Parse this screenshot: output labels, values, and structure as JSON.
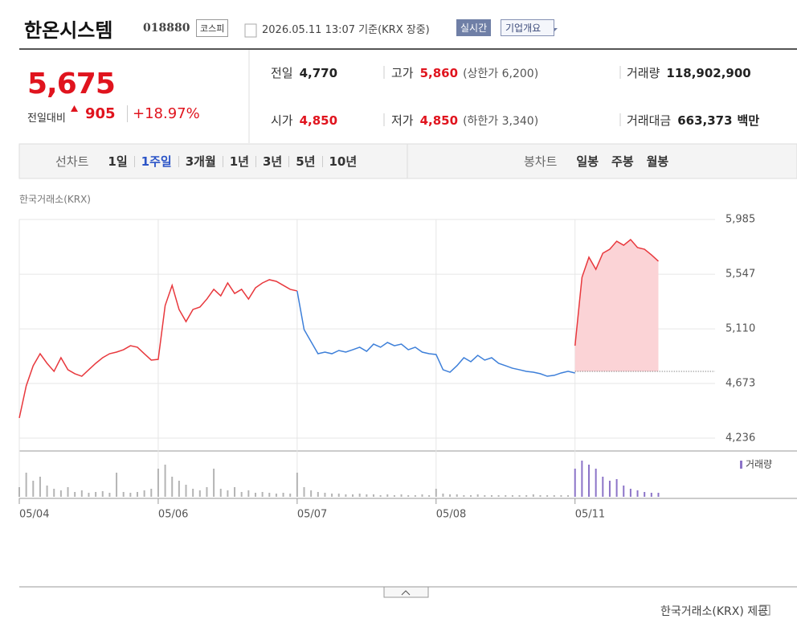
{
  "header": {
    "name": "한온시스템",
    "code": "018880",
    "market": "코스피",
    "datetime": "2026.05.11 13:07 기준(KRX 장중)",
    "realtime": "실시간",
    "overview": "기업개요"
  },
  "quote": {
    "price": "5,675",
    "change_label": "전일대비",
    "change": "905",
    "change_pct": "+18.97%",
    "fields": [
      {
        "label": "전일",
        "value": "4,770"
      },
      {
        "label": "고가",
        "value": "5,860",
        "note": "(상한가 6,200)",
        "up": true
      },
      {
        "label": "거래량",
        "value": "118,902,900"
      },
      {
        "label": "시가",
        "value": "4,850",
        "up": true
      },
      {
        "label": "저가",
        "value": "4,850",
        "note": "(하한가 3,340)",
        "up": true
      },
      {
        "label": "거래대금",
        "value": "663,373",
        "unit": "백만"
      }
    ]
  },
  "tabs": {
    "line_label": "선차트",
    "line": [
      "1일",
      "1주일",
      "3개월",
      "1년",
      "3년",
      "5년",
      "10년"
    ],
    "active_line": 1,
    "candle_label": "봉차트",
    "candle": [
      "일봉",
      "주봉",
      "월봉"
    ]
  },
  "source_top": "한국거래소(KRX)",
  "chart_data": {
    "type": "line",
    "x": [
      0,
      2,
      4,
      6,
      8,
      10,
      12,
      14,
      16,
      18,
      20,
      22,
      24,
      26,
      28,
      30,
      32,
      34,
      36,
      38,
      40,
      42,
      44,
      46,
      48,
      50,
      52,
      54,
      56,
      58,
      60,
      62,
      64,
      66,
      68,
      70,
      72,
      74,
      76,
      78,
      80,
      82,
      84,
      86,
      88,
      90,
      92,
      94,
      96,
      98,
      100,
      102,
      104,
      106,
      108,
      110,
      112,
      114,
      116,
      118,
      120,
      122,
      124,
      126,
      128,
      130,
      132,
      134,
      136,
      138,
      140,
      142,
      144,
      146,
      148,
      150,
      152,
      154,
      156,
      158,
      160,
      162,
      164,
      166,
      168,
      170,
      172,
      174,
      176,
      178,
      180,
      182,
      184
    ],
    "series": [
      {
        "color": "#e8383d",
        "values": [
          4397,
          4654,
          4815,
          4911,
          4834,
          4770,
          4879,
          4783,
          4751,
          4731,
          4783,
          4834,
          4879,
          4911,
          4924,
          4943,
          4975,
          4963,
          4911,
          4860,
          4866,
          5297,
          5458,
          5265,
          5168,
          5265,
          5284,
          5348,
          5426,
          5374,
          5477,
          5393,
          5426,
          5348,
          5438,
          5477,
          5503,
          5490,
          5458,
          5426,
          5413,
          null,
          null,
          null,
          null,
          null,
          null,
          null,
          null,
          null,
          null,
          null,
          null,
          null,
          null,
          null,
          null,
          null,
          null,
          null,
          null,
          null,
          null,
          null,
          null,
          null,
          null,
          null,
          null,
          null,
          null,
          null,
          null,
          null,
          null,
          null,
          null,
          null,
          null,
          null,
          4975,
          5522,
          5683,
          5586,
          5715,
          5747,
          5811,
          5779,
          5824,
          5760,
          5747,
          5702,
          5651
        ]
      },
      {
        "color": "#3d7fd9",
        "values": [
          null,
          null,
          null,
          null,
          null,
          null,
          null,
          null,
          null,
          null,
          null,
          null,
          null,
          null,
          null,
          null,
          null,
          null,
          null,
          null,
          null,
          null,
          null,
          null,
          null,
          null,
          null,
          null,
          null,
          null,
          null,
          null,
          null,
          null,
          null,
          null,
          null,
          null,
          null,
          null,
          5413,
          5104,
          5008,
          4911,
          4924,
          4911,
          4937,
          4924,
          4943,
          4963,
          4930,
          4988,
          4963,
          5001,
          4975,
          4988,
          4943,
          4963,
          4924,
          4911,
          4905,
          4783,
          4763,
          4815,
          4879,
          4847,
          4898,
          4860,
          4879,
          4834,
          4815,
          4795,
          4783,
          4770,
          4763,
          4751,
          4731,
          4738,
          4757,
          4770,
          4757,
          null,
          null,
          null,
          null,
          null,
          null,
          null,
          null,
          null,
          null,
          null,
          null
        ]
      }
    ],
    "xlim": [
      0,
      198
    ],
    "xticks": [
      {
        "value": 0,
        "label": "05/04"
      },
      {
        "value": 40,
        "label": "05/06"
      },
      {
        "value": 80,
        "label": "05/07"
      },
      {
        "value": 120,
        "label": "05/08"
      },
      {
        "value": 160,
        "label": "05/11"
      }
    ],
    "ylim": [
      4236,
      5985
    ],
    "yticks": [
      {
        "value": 4236,
        "label": "4,236"
      },
      {
        "value": 4673,
        "label": "4,673"
      },
      {
        "value": 5110,
        "label": "5,110"
      },
      {
        "value": 5547,
        "label": "5,547"
      },
      {
        "value": 5985,
        "label": "5,985"
      }
    ],
    "grid": true,
    "reference_line": 4770,
    "area_color": "#fbd3d6",
    "volume": {
      "name": "거래량",
      "color": "#8c74c8",
      "past_color": "#b4b4b4",
      "ylim": [
        0,
        50
      ],
      "values": [
        12,
        30,
        20,
        25,
        14,
        10,
        8,
        12,
        6,
        8,
        5,
        6,
        7,
        5,
        30,
        6,
        5,
        6,
        8,
        10,
        35,
        40,
        25,
        20,
        15,
        10,
        8,
        12,
        35,
        10,
        8,
        12,
        6,
        8,
        5,
        6,
        5,
        4,
        5,
        4,
        30,
        12,
        8,
        6,
        5,
        4,
        4,
        3,
        3,
        4,
        3,
        3,
        2,
        3,
        2,
        3,
        2,
        2,
        3,
        2,
        10,
        4,
        3,
        3,
        2,
        2,
        3,
        2,
        2,
        2,
        2,
        2,
        2,
        2,
        3,
        2,
        2,
        2,
        2,
        2,
        35,
        45,
        40,
        35,
        25,
        20,
        22,
        14,
        10,
        8,
        6,
        5,
        5
      ]
    }
  },
  "footer": "한국거래소(KRX) 제공"
}
